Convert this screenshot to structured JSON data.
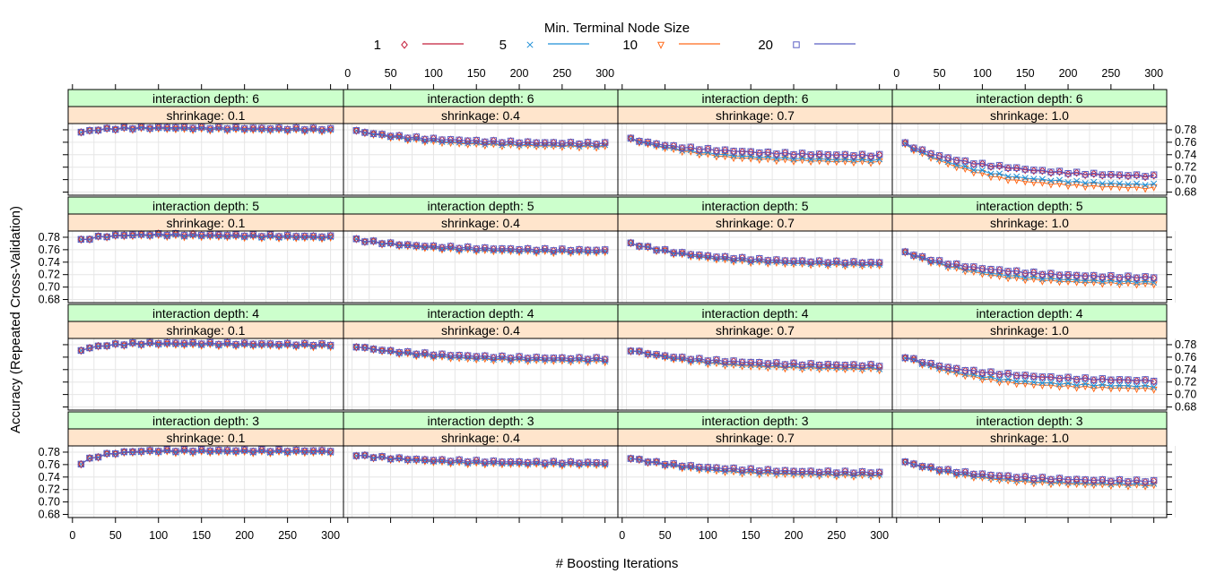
{
  "legend": {
    "title": "Min. Terminal Node Size",
    "items": [
      {
        "label": "1",
        "color": "#c41e3a",
        "marker": "diamond"
      },
      {
        "label": "5",
        "color": "#1f8fd6",
        "marker": "cross"
      },
      {
        "label": "10",
        "color": "#ff6a1a",
        "marker": "triangle-down"
      },
      {
        "label": "20",
        "color": "#5a5fc4",
        "marker": "square"
      }
    ]
  },
  "axes": {
    "xlabel": "# Boosting Iterations",
    "ylabel": "Accuracy (Repeated Cross-Validation)",
    "x_ticks": [
      "0",
      "50",
      "100",
      "150",
      "200",
      "250",
      "300"
    ],
    "y_ticks": [
      "0.68",
      "0.70",
      "0.72",
      "0.74",
      "0.76",
      "0.78"
    ]
  },
  "chart_data": {
    "type": "line",
    "layout": "4x4 trellis panels (rows: interaction depth, columns: shrinkage)",
    "xlabel": "# Boosting Iterations",
    "ylabel": "Accuracy (Repeated Cross-Validation)",
    "xlim": [
      -5,
      315
    ],
    "ylim": [
      0.675,
      0.79
    ],
    "grid": true,
    "legend_position": "top",
    "x": [
      10,
      20,
      30,
      40,
      50,
      60,
      70,
      80,
      90,
      100,
      110,
      120,
      130,
      140,
      150,
      160,
      170,
      180,
      190,
      200,
      210,
      220,
      230,
      240,
      250,
      260,
      270,
      280,
      290,
      300
    ],
    "series_names": [
      "1",
      "5",
      "10",
      "20"
    ],
    "panels": [
      {
        "depth_label": "interaction depth: 6",
        "shrinkage_label": "shrinkage: 0.1",
        "start": 0.776,
        "end": 0.78,
        "peak": 0.783,
        "spread": 0.003
      },
      {
        "depth_label": "interaction depth: 6",
        "shrinkage_label": "shrinkage: 0.4",
        "start": 0.778,
        "end": 0.755,
        "spread": 0.006
      },
      {
        "depth_label": "interaction depth: 6",
        "shrinkage_label": "shrinkage: 0.7",
        "start": 0.765,
        "end": 0.733,
        "spread": 0.012
      },
      {
        "depth_label": "interaction depth: 6",
        "shrinkage_label": "shrinkage: 1.0",
        "start": 0.757,
        "end": 0.695,
        "spread": 0.022
      },
      {
        "depth_label": "interaction depth: 5",
        "shrinkage_label": "shrinkage: 0.1",
        "start": 0.775,
        "end": 0.78,
        "peak": 0.784,
        "spread": 0.003
      },
      {
        "depth_label": "interaction depth: 5",
        "shrinkage_label": "shrinkage: 0.4",
        "start": 0.776,
        "end": 0.757,
        "spread": 0.004
      },
      {
        "depth_label": "interaction depth: 5",
        "shrinkage_label": "shrinkage: 0.7",
        "start": 0.77,
        "end": 0.736,
        "spread": 0.005
      },
      {
        "depth_label": "interaction depth: 5",
        "shrinkage_label": "shrinkage: 1.0",
        "start": 0.756,
        "end": 0.709,
        "spread": 0.012
      },
      {
        "depth_label": "interaction depth: 4",
        "shrinkage_label": "shrinkage: 0.1",
        "start": 0.771,
        "end": 0.779,
        "peak": 0.782,
        "spread": 0.003
      },
      {
        "depth_label": "interaction depth: 4",
        "shrinkage_label": "shrinkage: 0.4",
        "start": 0.777,
        "end": 0.755,
        "spread": 0.005
      },
      {
        "depth_label": "interaction depth: 4",
        "shrinkage_label": "shrinkage: 0.7",
        "start": 0.771,
        "end": 0.743,
        "spread": 0.007
      },
      {
        "depth_label": "interaction depth: 4",
        "shrinkage_label": "shrinkage: 1.0",
        "start": 0.76,
        "end": 0.715,
        "spread": 0.015
      },
      {
        "depth_label": "interaction depth: 3",
        "shrinkage_label": "shrinkage: 0.1",
        "start": 0.762,
        "end": 0.781,
        "peak": 0.782,
        "spread": 0.003
      },
      {
        "depth_label": "interaction depth: 3",
        "shrinkage_label": "shrinkage: 0.4",
        "start": 0.775,
        "end": 0.761,
        "spread": 0.004
      },
      {
        "depth_label": "interaction depth: 3",
        "shrinkage_label": "shrinkage: 0.7",
        "start": 0.77,
        "end": 0.744,
        "spread": 0.006
      },
      {
        "depth_label": "interaction depth: 3",
        "shrinkage_label": "shrinkage: 1.0",
        "start": 0.764,
        "end": 0.729,
        "spread": 0.008
      }
    ]
  },
  "colors": {
    "strip_depth": "#ccffcc",
    "strip_shrinkage": "#ffe5cc",
    "grid": "#e6e6e6"
  }
}
